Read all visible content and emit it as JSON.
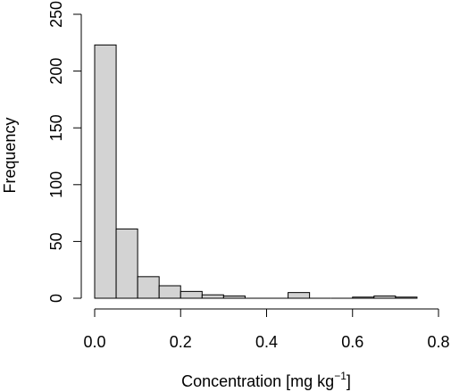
{
  "chart_data": {
    "type": "histogram",
    "xlabel": "Concentration [mg kg",
    "xlabel_superscript": "−1",
    "xlabel_suffix": "]",
    "ylabel": "Frequency",
    "xlim": [
      0,
      0.8
    ],
    "ylim": [
      0,
      250
    ],
    "x_ticks": [
      "0.0",
      "0.2",
      "0.4",
      "0.6",
      "0.8"
    ],
    "y_ticks": [
      "0",
      "50",
      "100",
      "150",
      "200",
      "250"
    ],
    "bin_width": 0.05,
    "bins": [
      {
        "start": 0.0,
        "end": 0.05,
        "count": 223
      },
      {
        "start": 0.05,
        "end": 0.1,
        "count": 61
      },
      {
        "start": 0.1,
        "end": 0.15,
        "count": 19
      },
      {
        "start": 0.15,
        "end": 0.2,
        "count": 11
      },
      {
        "start": 0.2,
        "end": 0.25,
        "count": 6
      },
      {
        "start": 0.25,
        "end": 0.3,
        "count": 3
      },
      {
        "start": 0.3,
        "end": 0.35,
        "count": 2
      },
      {
        "start": 0.35,
        "end": 0.4,
        "count": 0
      },
      {
        "start": 0.4,
        "end": 0.45,
        "count": 0
      },
      {
        "start": 0.45,
        "end": 0.5,
        "count": 5
      },
      {
        "start": 0.5,
        "end": 0.55,
        "count": 0
      },
      {
        "start": 0.55,
        "end": 0.6,
        "count": 0
      },
      {
        "start": 0.6,
        "end": 0.65,
        "count": 1
      },
      {
        "start": 0.65,
        "end": 0.7,
        "count": 2
      },
      {
        "start": 0.7,
        "end": 0.75,
        "count": 1
      }
    ],
    "grid": false,
    "colors": {
      "bar_fill": "#d3d3d3",
      "bar_stroke": "#000000"
    }
  }
}
